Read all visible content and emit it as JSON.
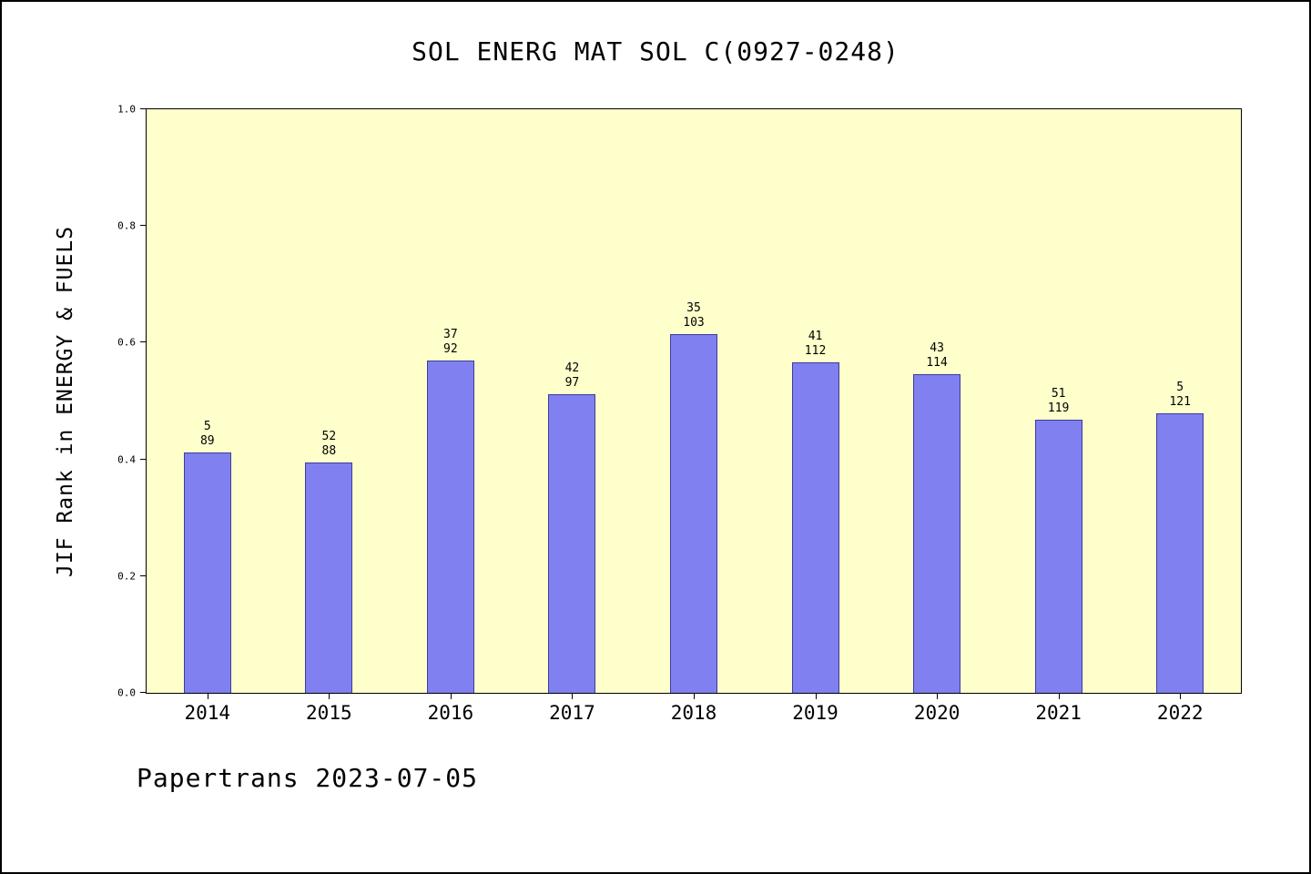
{
  "page": {
    "footer": "Papertrans 2023-07-05"
  },
  "chart_data": {
    "type": "bar",
    "title": "SOL ENERG MAT SOL C(0927-0248)",
    "xlabel": "",
    "ylabel": "JIF Rank in ENERGY & FUELS",
    "ylim": [
      0.0,
      1.0
    ],
    "yticks": [
      0.0,
      0.2,
      0.4,
      0.6,
      0.8,
      1.0
    ],
    "grid": false,
    "legend_position": "none",
    "categories": [
      "2014",
      "2015",
      "2016",
      "2017",
      "2018",
      "2019",
      "2020",
      "2021",
      "2022"
    ],
    "values": [
      0.412,
      0.394,
      0.57,
      0.512,
      0.615,
      0.567,
      0.546,
      0.468,
      0.479
    ],
    "bar_labels": [
      {
        "rank": "5",
        "total": "89"
      },
      {
        "rank": "52",
        "total": "88"
      },
      {
        "rank": "37",
        "total": "92"
      },
      {
        "rank": "42",
        "total": "97"
      },
      {
        "rank": "35",
        "total": "103"
      },
      {
        "rank": "41",
        "total": "112"
      },
      {
        "rank": "43",
        "total": "114"
      },
      {
        "rank": "51",
        "total": "119"
      },
      {
        "rank": "5",
        "total": "121"
      }
    ],
    "colors": {
      "bar_fill": "#8080f0",
      "bar_edge": "#3c3c9c",
      "plot_bg": "#ffffcc",
      "page_bg": "#ffffff",
      "axis": "#000000",
      "text": "#000000"
    }
  }
}
